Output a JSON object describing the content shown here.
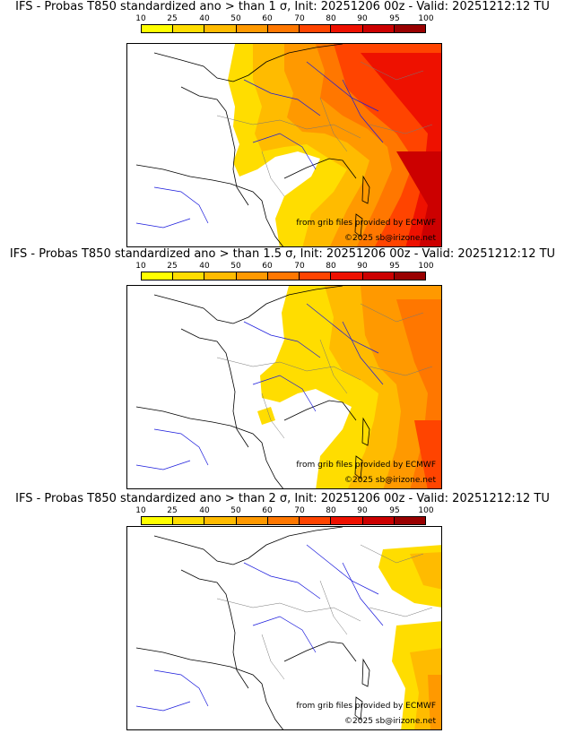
{
  "legend": {
    "ticks": [
      "10",
      "25",
      "40",
      "50",
      "60",
      "70",
      "80",
      "90",
      "95",
      "100"
    ],
    "colors": [
      "#ffff00",
      "#ffdd00",
      "#ffbb00",
      "#ff9900",
      "#ff7700",
      "#ff4400",
      "#ee1100",
      "#cc0000",
      "#990000",
      "#660000"
    ]
  },
  "credits": {
    "source": "from grib files provided by ECMWF",
    "copyright": "©2025 sb@irizone.net"
  },
  "panels": [
    {
      "title": "IFS - Probas T850  standardized ano > than 1 σ, Init: 20251206 00z - Valid: 20251212:12 TU"
    },
    {
      "title": "IFS - Probas T850  standardized ano > than 1.5 σ, Init: 20251206 00z - Valid: 20251212:12 TU"
    },
    {
      "title": "IFS - Probas T850  standardized ano > than 2 σ, Init: 20251206 00z - Valid: 20251212:12 TU"
    }
  ]
}
